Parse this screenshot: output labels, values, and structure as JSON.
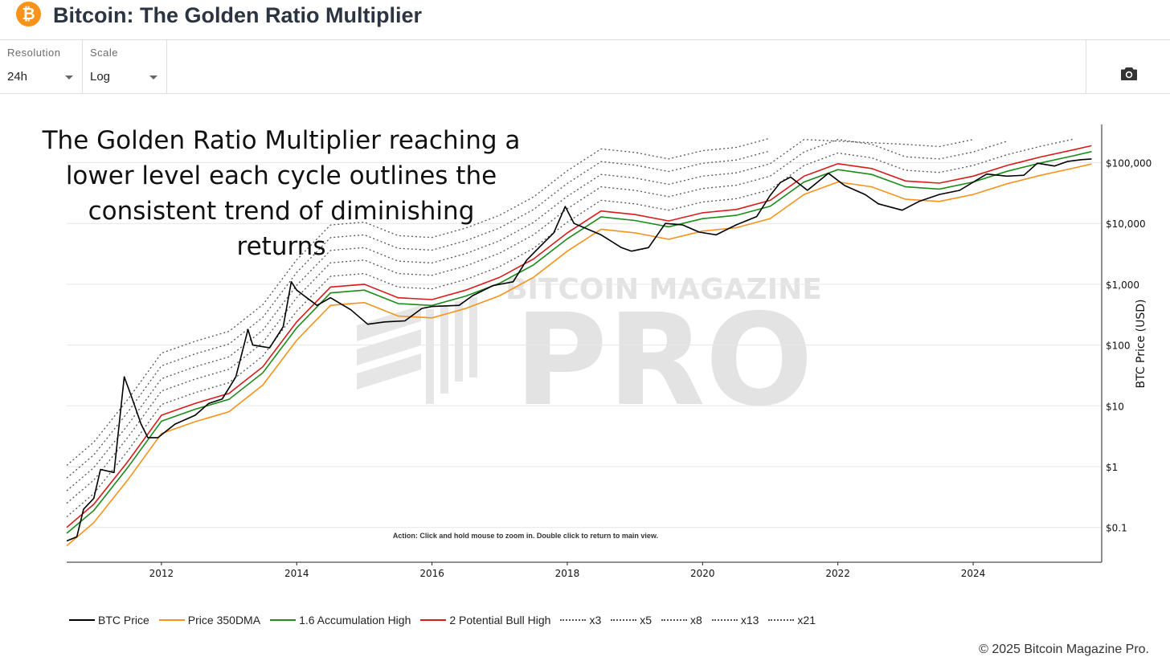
{
  "header": {
    "logo_glyph": "₿",
    "title": "Bitcoin: The Golden Ratio Multiplier"
  },
  "controls": {
    "resolution": {
      "label": "Resolution",
      "value": "24h"
    },
    "scale": {
      "label": "Scale",
      "value": "Log"
    },
    "camera_icon": "camera-icon"
  },
  "annotation": {
    "lines": [
      "The Golden Ratio Multiplier reaching a",
      "lower level each cycle outlines the",
      "consistent trend of diminishing returns"
    ]
  },
  "watermark": {
    "top": "BITCOIN MAGAZINE",
    "main": "PRO"
  },
  "chart_action_text": "Action: Click and hold mouse to zoom in.  Double click to return to main view.",
  "copyright": "© 2025 Bitcoin Magazine Pro.",
  "colors": {
    "btc": "#000000",
    "dma": "#f7931a",
    "acc": "#1a8c1a",
    "bull": "#d81b1b",
    "mult": "#555555"
  },
  "chart_data": {
    "type": "line",
    "title": "Bitcoin: The Golden Ratio Multiplier",
    "ylabel": "BTC Price (USD)",
    "yscale": "log",
    "ylim": [
      0.05,
      400000
    ],
    "xlim": [
      2010.6,
      2025.9
    ],
    "x_ticks": [
      2012,
      2014,
      2016,
      2018,
      2020,
      2022,
      2024
    ],
    "x_tick_labels": [
      "2012",
      "2014",
      "2016",
      "2018",
      "2020",
      "2022",
      "2024"
    ],
    "y_ticks": [
      0.1,
      1,
      10,
      100,
      1000,
      10000,
      100000
    ],
    "y_tick_labels": [
      "$0.1",
      "$1",
      "$10",
      "$100",
      "$1,000",
      "$10,000",
      "$100,000"
    ],
    "grid": true,
    "legend_position": "bottom",
    "series": [
      {
        "name": "BTC Price",
        "x": [
          2010.6,
          2010.75,
          2010.85,
          2011.0,
          2011.1,
          2011.3,
          2011.45,
          2011.55,
          2011.7,
          2011.8,
          2011.95,
          2012.2,
          2012.5,
          2012.7,
          2012.9,
          2013.1,
          2013.28,
          2013.35,
          2013.6,
          2013.8,
          2013.92,
          2014.0,
          2014.15,
          2014.3,
          2014.5,
          2014.8,
          2015.05,
          2015.3,
          2015.6,
          2015.85,
          2016.0,
          2016.4,
          2016.6,
          2016.9,
          2017.2,
          2017.4,
          2017.6,
          2017.8,
          2017.97,
          2018.1,
          2018.25,
          2018.5,
          2018.8,
          2018.95,
          2019.2,
          2019.45,
          2019.7,
          2019.95,
          2020.2,
          2020.5,
          2020.8,
          2021.0,
          2021.15,
          2021.3,
          2021.55,
          2021.86,
          2022.1,
          2022.4,
          2022.6,
          2022.95,
          2023.2,
          2023.5,
          2023.8,
          2024.2,
          2024.5,
          2024.75,
          2024.95,
          2025.2,
          2025.4,
          2025.6,
          2025.75
        ],
        "values": [
          0.06,
          0.07,
          0.2,
          0.3,
          0.9,
          0.8,
          30,
          15,
          5,
          3,
          3,
          5,
          7,
          11,
          13,
          30,
          180,
          100,
          90,
          200,
          1100,
          800,
          600,
          450,
          600,
          380,
          220,
          240,
          250,
          400,
          430,
          450,
          650,
          950,
          1100,
          2500,
          4200,
          7000,
          19000,
          10000,
          8500,
          6500,
          4000,
          3500,
          4000,
          10000,
          9500,
          7200,
          6500,
          9500,
          13000,
          29000,
          47000,
          58000,
          35000,
          67000,
          42000,
          30000,
          21000,
          16500,
          23000,
          30000,
          35000,
          65000,
          60000,
          62000,
          98000,
          88000,
          105000,
          112000,
          115000
        ]
      },
      {
        "name": "Price 350DMA",
        "x": [
          2010.6,
          2011.0,
          2011.5,
          2012.0,
          2012.5,
          2013.0,
          2013.5,
          2014.0,
          2014.5,
          2015.0,
          2015.5,
          2016.0,
          2016.5,
          2017.0,
          2017.5,
          2018.0,
          2018.5,
          2019.0,
          2019.5,
          2020.0,
          2020.5,
          2021.0,
          2021.5,
          2022.0,
          2022.5,
          2023.0,
          2023.5,
          2024.0,
          2024.5,
          2025.0,
          2025.5,
          2025.75
        ],
        "values": [
          0.05,
          0.12,
          0.6,
          3.5,
          5.5,
          8,
          22,
          120,
          450,
          500,
          300,
          280,
          400,
          650,
          1300,
          3500,
          8000,
          7000,
          5500,
          7500,
          8500,
          12000,
          30000,
          48000,
          40000,
          25000,
          23000,
          30000,
          45000,
          62000,
          82000,
          95000
        ]
      },
      {
        "name": "1.6 Accumulation High",
        "x": [
          2010.6,
          2011.0,
          2011.5,
          2012.0,
          2012.5,
          2013.0,
          2013.5,
          2014.0,
          2014.5,
          2015.0,
          2015.5,
          2016.0,
          2016.5,
          2017.0,
          2017.5,
          2018.0,
          2018.5,
          2019.0,
          2019.5,
          2020.0,
          2020.5,
          2021.0,
          2021.5,
          2022.0,
          2022.5,
          2023.0,
          2023.5,
          2024.0,
          2024.5,
          2025.0,
          2025.5,
          2025.75
        ],
        "values": [
          0.08,
          0.19,
          0.96,
          5.6,
          8.8,
          12.8,
          35,
          192,
          720,
          800,
          480,
          448,
          640,
          1040,
          2080,
          5600,
          12800,
          11200,
          8800,
          12000,
          13600,
          19200,
          48000,
          76800,
          64000,
          40000,
          36800,
          48000,
          72000,
          99200,
          131200,
          152000
        ]
      },
      {
        "name": "2 Potential Bull High",
        "x": [
          2010.6,
          2011.0,
          2011.5,
          2012.0,
          2012.5,
          2013.0,
          2013.5,
          2014.0,
          2014.5,
          2015.0,
          2015.5,
          2016.0,
          2016.5,
          2017.0,
          2017.5,
          2018.0,
          2018.5,
          2019.0,
          2019.5,
          2020.0,
          2020.5,
          2021.0,
          2021.5,
          2022.0,
          2022.5,
          2023.0,
          2023.5,
          2024.0,
          2024.5,
          2025.0,
          2025.5,
          2025.75
        ],
        "values": [
          0.1,
          0.24,
          1.2,
          7,
          11,
          16,
          44,
          240,
          900,
          1000,
          600,
          560,
          800,
          1300,
          2600,
          7000,
          16000,
          14000,
          11000,
          15000,
          17000,
          24000,
          60000,
          96000,
          80000,
          50000,
          46000,
          60000,
          90000,
          124000,
          164000,
          190000
        ]
      },
      {
        "name": "x3",
        "multiplier": 3
      },
      {
        "name": "x5",
        "multiplier": 5
      },
      {
        "name": "x8",
        "multiplier": 8
      },
      {
        "name": "x13",
        "multiplier": 13
      },
      {
        "name": "x21",
        "multiplier": 21
      }
    ]
  }
}
